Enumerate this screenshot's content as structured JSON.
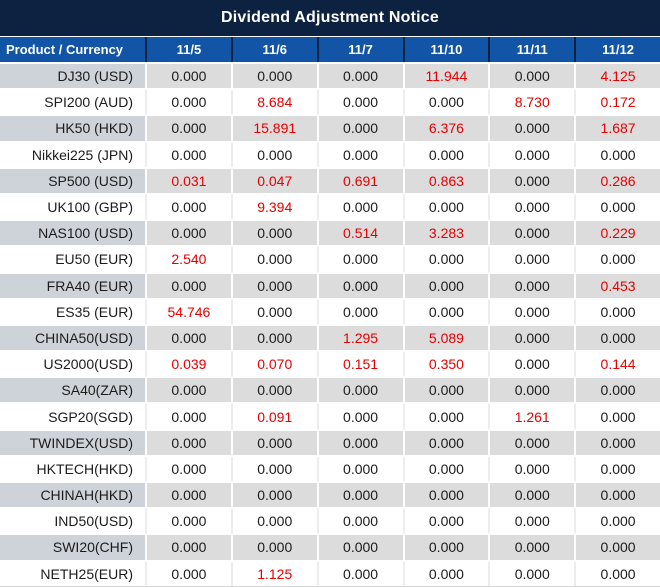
{
  "title": "Dividend Adjustment Notice",
  "colors": {
    "title_bar_bg": "#0d2240",
    "header_bg": "#1254a6",
    "header_text": "#ffffff",
    "gray_row_product_bg": "#ced3da",
    "gray_row_value_bg": "#dcdcdc",
    "value_text": "#1b1b1b",
    "nonzero_value_text": "#e60000"
  },
  "table": {
    "product_header": "Product / Currency",
    "date_headers": [
      "11/5",
      "11/6",
      "11/7",
      "11/10",
      "11/11",
      "11/12"
    ],
    "rows": [
      {
        "product": "DJ30 (USD)",
        "values": [
          "0.000",
          "0.000",
          "0.000",
          "11.944",
          "0.000",
          "4.125"
        ]
      },
      {
        "product": "SPI200 (AUD)",
        "values": [
          "0.000",
          "8.684",
          "0.000",
          "0.000",
          "8.730",
          "0.172"
        ]
      },
      {
        "product": "HK50 (HKD)",
        "values": [
          "0.000",
          "15.891",
          "0.000",
          "6.376",
          "0.000",
          "1.687"
        ]
      },
      {
        "product": "Nikkei225 (JPN)",
        "values": [
          "0.000",
          "0.000",
          "0.000",
          "0.000",
          "0.000",
          "0.000"
        ]
      },
      {
        "product": "SP500 (USD)",
        "values": [
          "0.031",
          "0.047",
          "0.691",
          "0.863",
          "0.000",
          "0.286"
        ]
      },
      {
        "product": "UK100 (GBP)",
        "values": [
          "0.000",
          "9.394",
          "0.000",
          "0.000",
          "0.000",
          "0.000"
        ]
      },
      {
        "product": "NAS100 (USD)",
        "values": [
          "0.000",
          "0.000",
          "0.514",
          "3.283",
          "0.000",
          "0.229"
        ]
      },
      {
        "product": "EU50 (EUR)",
        "values": [
          "2.540",
          "0.000",
          "0.000",
          "0.000",
          "0.000",
          "0.000"
        ]
      },
      {
        "product": "FRA40 (EUR)",
        "values": [
          "0.000",
          "0.000",
          "0.000",
          "0.000",
          "0.000",
          "0.453"
        ]
      },
      {
        "product": "ES35 (EUR)",
        "values": [
          "54.746",
          "0.000",
          "0.000",
          "0.000",
          "0.000",
          "0.000"
        ]
      },
      {
        "product": "CHINA50(USD)",
        "values": [
          "0.000",
          "0.000",
          "1.295",
          "5.089",
          "0.000",
          "0.000"
        ]
      },
      {
        "product": "US2000(USD)",
        "values": [
          "0.039",
          "0.070",
          "0.151",
          "0.350",
          "0.000",
          "0.144"
        ]
      },
      {
        "product": "SA40(ZAR)",
        "values": [
          "0.000",
          "0.000",
          "0.000",
          "0.000",
          "0.000",
          "0.000"
        ]
      },
      {
        "product": "SGP20(SGD)",
        "values": [
          "0.000",
          "0.091",
          "0.000",
          "0.000",
          "1.261",
          "0.000"
        ]
      },
      {
        "product": "TWINDEX(USD)",
        "values": [
          "0.000",
          "0.000",
          "0.000",
          "0.000",
          "0.000",
          "0.000"
        ]
      },
      {
        "product": "HKTECH(HKD)",
        "values": [
          "0.000",
          "0.000",
          "0.000",
          "0.000",
          "0.000",
          "0.000"
        ]
      },
      {
        "product": "CHINAH(HKD)",
        "values": [
          "0.000",
          "0.000",
          "0.000",
          "0.000",
          "0.000",
          "0.000"
        ]
      },
      {
        "product": "IND50(USD)",
        "values": [
          "0.000",
          "0.000",
          "0.000",
          "0.000",
          "0.000",
          "0.000"
        ]
      },
      {
        "product": "SWI20(CHF)",
        "values": [
          "0.000",
          "0.000",
          "0.000",
          "0.000",
          "0.000",
          "0.000"
        ]
      },
      {
        "product": "NETH25(EUR)",
        "values": [
          "0.000",
          "1.125",
          "0.000",
          "0.000",
          "0.000",
          "0.000"
        ]
      }
    ]
  }
}
